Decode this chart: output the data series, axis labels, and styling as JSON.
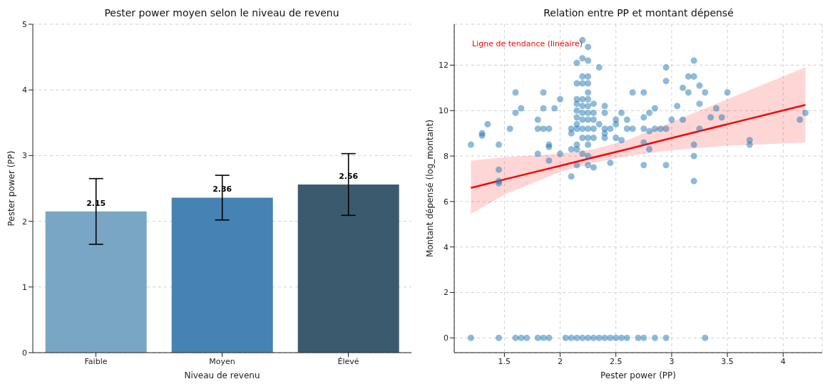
{
  "chart_data": [
    {
      "type": "bar",
      "title": "Pester power moyen selon le niveau de revenu",
      "xlabel": "Niveau de revenu",
      "ylabel": "Pester power (PP)",
      "categories": [
        "Faible",
        "Moyen",
        "Élevé"
      ],
      "values": [
        2.15,
        2.36,
        2.56
      ],
      "colors": [
        "#7aa6c6",
        "#4682b4",
        "#3b5a6e"
      ],
      "errors": [
        0.5,
        0.34,
        0.47
      ],
      "data_labels": true,
      "ylim": [
        0,
        5
      ],
      "yticks": [
        0,
        1,
        2,
        3,
        4,
        5
      ],
      "grid": "y",
      "legend": false
    },
    {
      "type": "scatter",
      "title": "Relation entre PP et montant dépensé",
      "xlabel": "Pester power (PP)",
      "ylabel": "Montant dépensé (log_montant)",
      "xlim": [
        1.05,
        4.35
      ],
      "xticks": [
        1.5,
        2.0,
        2.5,
        3.0,
        3.5,
        4.0
      ],
      "ylim": [
        -0.65,
        13.8
      ],
      "yticks": [
        0,
        2,
        4,
        6,
        8,
        10,
        12
      ],
      "grid": true,
      "legend": false,
      "series": [
        {
          "type": "scatter",
          "marker": "circle",
          "color": "#1f77b4",
          "x": [
            1.2,
            1.45,
            1.6,
            1.65,
            1.7,
            1.8,
            1.85,
            1.9,
            2.05,
            2.1,
            2.15,
            2.2,
            2.25,
            2.3,
            2.35,
            2.4,
            2.45,
            2.5,
            2.55,
            2.6,
            2.7,
            2.75,
            2.85,
            2.95,
            3.3,
            1.2,
            1.3,
            1.3,
            1.35,
            1.45,
            1.45,
            1.45,
            1.45,
            1.55,
            1.6,
            1.6,
            1.65,
            1.8,
            1.8,
            1.8,
            1.85,
            1.85,
            1.85,
            1.9,
            1.9,
            1.9,
            1.9,
            1.95,
            2.0,
            2.0,
            2.1,
            2.1,
            2.1,
            2.1,
            2.15,
            2.15,
            2.15,
            2.15,
            2.15,
            2.15,
            2.15,
            2.15,
            2.15,
            2.15,
            2.15,
            2.2,
            2.2,
            2.2,
            2.2,
            2.2,
            2.2,
            2.2,
            2.2,
            2.2,
            2.2,
            2.2,
            2.25,
            2.25,
            2.25,
            2.25,
            2.25,
            2.25,
            2.25,
            2.25,
            2.25,
            2.25,
            2.25,
            2.25,
            2.25,
            2.25,
            2.3,
            2.3,
            2.3,
            2.3,
            2.3,
            2.3,
            2.35,
            2.35,
            2.4,
            2.4,
            2.4,
            2.4,
            2.4,
            2.45,
            2.45,
            2.5,
            2.5,
            2.5,
            2.55,
            2.55,
            2.6,
            2.6,
            2.65,
            2.65,
            2.75,
            2.75,
            2.75,
            2.75,
            2.75,
            2.8,
            2.8,
            2.8,
            2.85,
            2.85,
            2.9,
            2.95,
            2.95,
            2.95,
            2.95,
            3.0,
            3.05,
            3.1,
            3.1,
            3.15,
            3.15,
            3.2,
            3.2,
            3.2,
            3.2,
            3.2,
            3.25,
            3.25,
            3.25,
            3.3,
            3.35,
            3.4,
            3.45,
            3.5,
            3.7,
            3.7,
            4.15,
            4.2
          ],
          "values": [
            0,
            0,
            0,
            0,
            0,
            0,
            0,
            0,
            0,
            0,
            0,
            0,
            0,
            0,
            0,
            0,
            0,
            0,
            0,
            0,
            0,
            0,
            0,
            0,
            0,
            8.5,
            9.0,
            8.9,
            9.4,
            8.5,
            7.4,
            6.9,
            6.8,
            9.2,
            10.8,
            9.9,
            10.1,
            9.6,
            9.2,
            8.1,
            10.8,
            10.1,
            9.2,
            9.2,
            8.5,
            8.4,
            7.8,
            10.1,
            10.5,
            8.1,
            9.2,
            9.0,
            8.3,
            7.1,
            12.1,
            11.2,
            10.5,
            10.3,
            10.0,
            9.7,
            9.4,
            9.2,
            8.5,
            8.3,
            7.6,
            13.1,
            12.3,
            11.5,
            11.2,
            10.5,
            10.2,
            9.9,
            9.6,
            9.2,
            8.8,
            8.1,
            12.8,
            12.2,
            11.5,
            11.2,
            10.8,
            10.5,
            10.2,
            9.9,
            9.6,
            9.2,
            8.8,
            8.5,
            8.0,
            7.6,
            10.3,
            9.9,
            9.6,
            9.2,
            8.8,
            7.5,
            11.9,
            9.4,
            10.2,
            9.9,
            9.2,
            9.0,
            8.8,
            9.2,
            7.7,
            9.6,
            9.4,
            8.8,
            9.9,
            8.7,
            9.6,
            9.2,
            10.8,
            9.2,
            10.8,
            9.7,
            9.2,
            8.6,
            7.6,
            9.9,
            9.1,
            8.3,
            10.1,
            9.2,
            9.2,
            11.9,
            11.3,
            9.2,
            7.6,
            9.6,
            10.2,
            11.0,
            9.6,
            11.5,
            10.8,
            12.2,
            11.5,
            8.5,
            8.0,
            6.9,
            11.1,
            10.3,
            9.2,
            10.8,
            9.7,
            10.1,
            9.7,
            10.8,
            8.7,
            8.5,
            9.6,
            9.9
          ]
        },
        {
          "type": "line",
          "name": "Ligne de tendance (linéaire)",
          "color": "#ff0000",
          "line_style": "solid",
          "x": [
            1.2,
            1.5,
            2.0,
            2.3,
            2.6,
            3.0,
            3.5,
            4.2
          ],
          "values": [
            6.6,
            6.97,
            7.57,
            7.94,
            8.3,
            8.79,
            9.4,
            10.25
          ],
          "lower": [
            5.45,
            6.3,
            7.3,
            7.7,
            8.0,
            8.25,
            8.45,
            8.6
          ],
          "upper": [
            7.8,
            7.95,
            8.1,
            8.3,
            8.7,
            9.5,
            10.5,
            11.9
          ]
        }
      ]
    }
  ]
}
